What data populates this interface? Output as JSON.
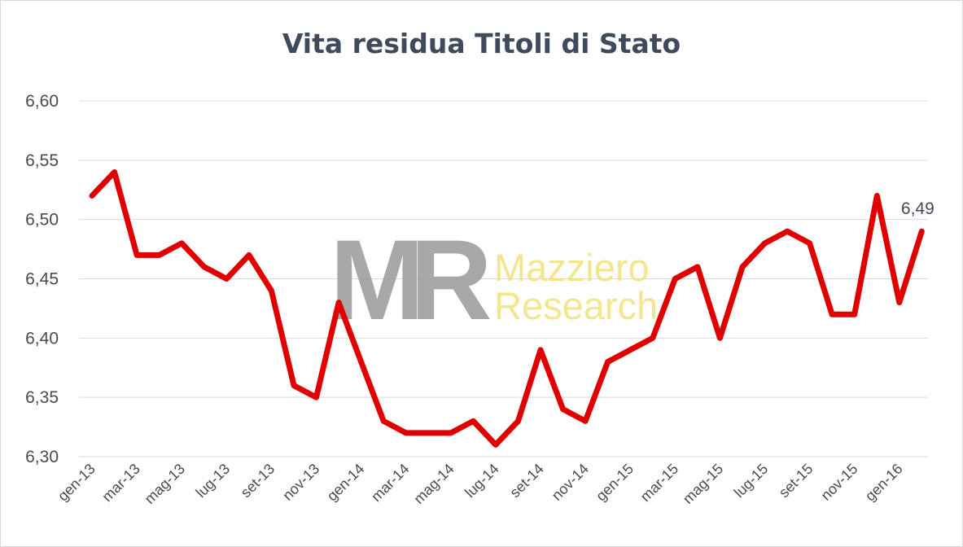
{
  "chart_data": {
    "type": "line",
    "title": "Vita residua Titoli di Stato",
    "xlabel": "",
    "ylabel": "",
    "ylim": [
      6.3,
      6.6
    ],
    "yticks": [
      "6,30",
      "6,35",
      "6,40",
      "6,45",
      "6,50",
      "6,55",
      "6,60"
    ],
    "ytick_values": [
      6.3,
      6.35,
      6.4,
      6.45,
      6.5,
      6.55,
      6.6
    ],
    "grid": true,
    "legend": "none",
    "x": [
      "gen-13",
      "feb-13",
      "mar-13",
      "apr-13",
      "mag-13",
      "giu-13",
      "lug-13",
      "ago-13",
      "set-13",
      "ott-13",
      "nov-13",
      "dic-13",
      "gen-14",
      "feb-14",
      "mar-14",
      "apr-14",
      "mag-14",
      "giu-14",
      "lug-14",
      "ago-14",
      "set-14",
      "ott-14",
      "nov-14",
      "dic-14",
      "gen-15",
      "feb-15",
      "mar-15",
      "apr-15",
      "mag-15",
      "giu-15",
      "lug-15",
      "ago-15",
      "set-15",
      "ott-15",
      "nov-15",
      "dic-15",
      "gen-16",
      "feb-16"
    ],
    "x_tick_labels": [
      "gen-13",
      "mar-13",
      "mag-13",
      "lug-13",
      "set-13",
      "nov-13",
      "gen-14",
      "mar-14",
      "mag-14",
      "lug-14",
      "set-14",
      "nov-14",
      "gen-15",
      "mar-15",
      "mag-15",
      "lug-15",
      "set-15",
      "nov-15",
      "gen-16"
    ],
    "series": [
      {
        "values": [
          6.52,
          6.54,
          6.47,
          6.47,
          6.48,
          6.46,
          6.45,
          6.47,
          6.44,
          6.36,
          6.35,
          6.43,
          6.38,
          6.33,
          6.32,
          6.32,
          6.32,
          6.33,
          6.31,
          6.33,
          6.39,
          6.34,
          6.33,
          6.38,
          6.39,
          6.4,
          6.45,
          6.46,
          6.4,
          6.46,
          6.48,
          6.49,
          6.48,
          6.42,
          6.42,
          6.52,
          6.43,
          6.49
        ],
        "color": "#e00000"
      }
    ],
    "data_labels": [
      {
        "index": 37,
        "text": "6,49"
      }
    ]
  },
  "watermark": {
    "logo_letters": "MR",
    "line1": "Mazziero",
    "line2": "Research"
  },
  "colors": {
    "line": "#e00000",
    "grid": "#d9d9d9",
    "title": "#3f4a5c",
    "watermark_gray": "#9a9a9a",
    "watermark_yellow": "#f2e27a"
  }
}
